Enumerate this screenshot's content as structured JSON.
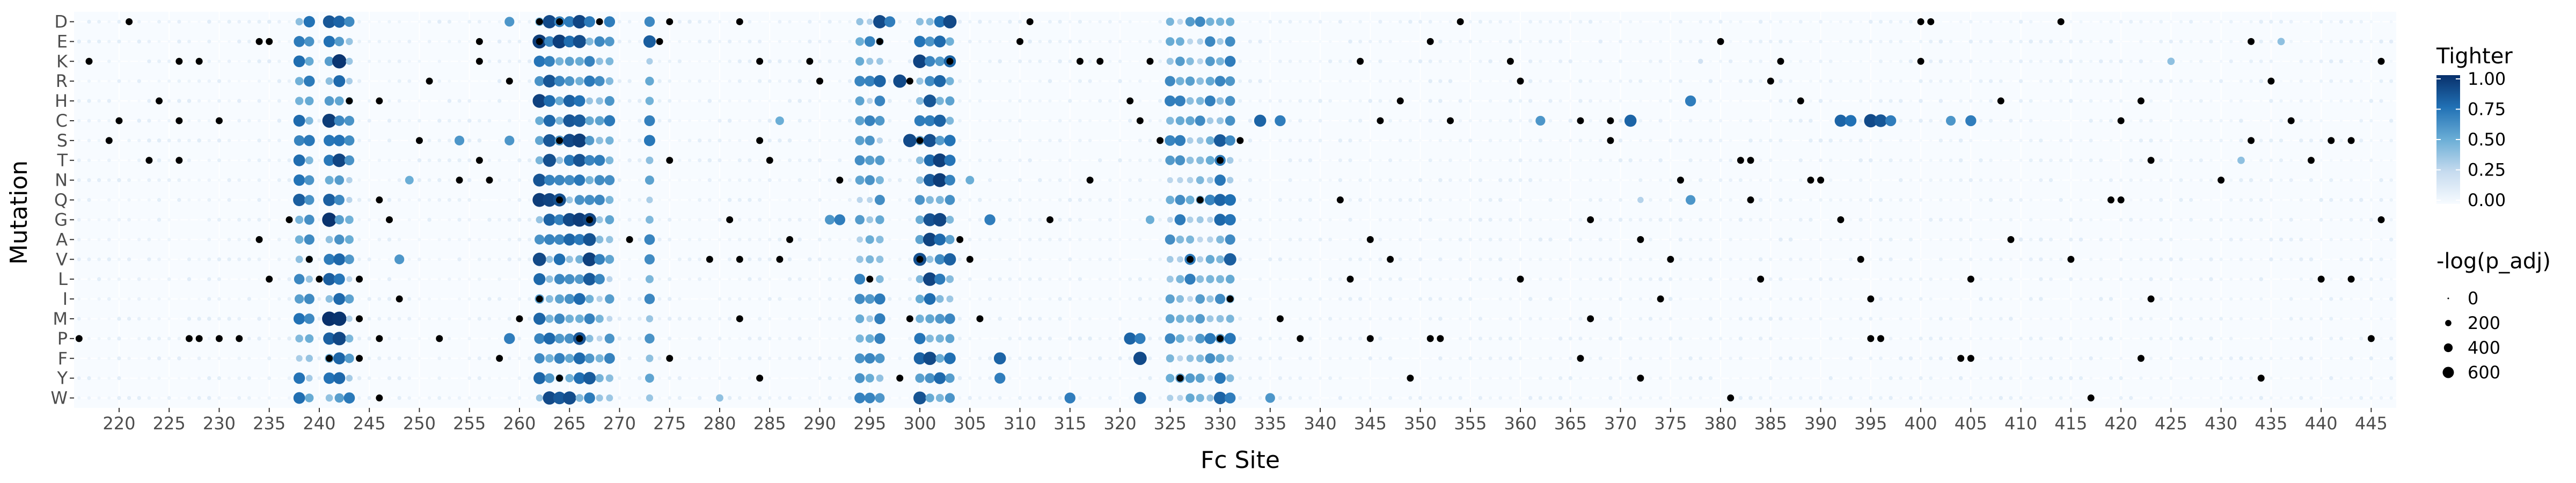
{
  "chart_data": {
    "type": "scatter",
    "subtype": "dot-matrix",
    "xlabel": "Fc Site",
    "ylabel": "Mutation",
    "x_range": [
      216,
      447
    ],
    "x_ticks": [
      220,
      225,
      230,
      235,
      240,
      245,
      250,
      255,
      260,
      265,
      270,
      275,
      280,
      285,
      290,
      295,
      300,
      305,
      310,
      315,
      320,
      325,
      330,
      335,
      340,
      345,
      350,
      355,
      360,
      365,
      370,
      375,
      380,
      385,
      390,
      395,
      400,
      405,
      410,
      415,
      420,
      425,
      430,
      435,
      440,
      445
    ],
    "mutations": [
      "D",
      "E",
      "K",
      "R",
      "H",
      "C",
      "S",
      "T",
      "N",
      "Q",
      "G",
      "A",
      "V",
      "L",
      "I",
      "M",
      "P",
      "F",
      "Y",
      "W"
    ],
    "color_legend": {
      "title": "Tighter",
      "ticks": [
        "1.00",
        "0.75",
        "0.50",
        "0.25",
        "0.00"
      ],
      "low_color": "#f7fbff",
      "high_color": "#08306b"
    },
    "size_legend": {
      "title": "-log(p_adj)",
      "entries": [
        {
          "label": "0",
          "value": 0
        },
        {
          "label": "200",
          "value": 200
        },
        {
          "label": "400",
          "value": 400
        },
        {
          "label": "600",
          "value": 600
        }
      ]
    },
    "significant_color": "#000000",
    "background_color": "#f7fbff",
    "hotspot_columns": [
      {
        "from": 238,
        "to": 239,
        "value": 0.7
      },
      {
        "from": 241,
        "to": 242,
        "value": 0.85
      },
      {
        "from": 243,
        "to": 243,
        "value": 0.6
      },
      {
        "from": 262,
        "to": 267,
        "value": 0.8
      },
      {
        "from": 268,
        "to": 269,
        "value": 0.6
      },
      {
        "from": 273,
        "to": 273,
        "value": 0.7
      },
      {
        "from": 294,
        "to": 296,
        "value": 0.6
      },
      {
        "from": 300,
        "to": 303,
        "value": 0.8
      },
      {
        "from": 325,
        "to": 329,
        "value": 0.6
      },
      {
        "from": 330,
        "to": 331,
        "value": 0.7
      }
    ],
    "points": [
      {
        "m": "C",
        "x": 392,
        "v": 0.8
      },
      {
        "m": "C",
        "x": 393,
        "v": 0.75
      },
      {
        "m": "C",
        "x": 395,
        "v": 0.9
      },
      {
        "m": "C",
        "x": 396,
        "v": 0.85
      },
      {
        "m": "C",
        "x": 397,
        "v": 0.7
      },
      {
        "m": "C",
        "x": 403,
        "v": 0.6
      },
      {
        "m": "C",
        "x": 405,
        "v": 0.7
      },
      {
        "m": "C",
        "x": 334,
        "v": 0.8
      },
      {
        "m": "C",
        "x": 336,
        "v": 0.7
      },
      {
        "m": "C",
        "x": 362,
        "v": 0.6
      },
      {
        "m": "C",
        "x": 371,
        "v": 0.8
      },
      {
        "m": "C",
        "x": 286,
        "v": 0.5
      },
      {
        "m": "H",
        "x": 377,
        "v": 0.7
      },
      {
        "m": "Q",
        "x": 377,
        "v": 0.6
      },
      {
        "m": "W",
        "x": 315,
        "v": 0.7
      },
      {
        "m": "W",
        "x": 335,
        "v": 0.6
      },
      {
        "m": "W",
        "x": 280,
        "v": 0.4
      },
      {
        "m": "Y",
        "x": 308,
        "v": 0.7
      },
      {
        "m": "F",
        "x": 308,
        "v": 0.8
      },
      {
        "m": "G",
        "x": 307,
        "v": 0.7
      },
      {
        "m": "N",
        "x": 305,
        "v": 0.5
      },
      {
        "m": "D",
        "x": 296,
        "v": 0.9
      },
      {
        "m": "D",
        "x": 297,
        "v": 0.7
      },
      {
        "m": "R",
        "x": 296,
        "v": 0.8
      },
      {
        "m": "R",
        "x": 298,
        "v": 0.9
      },
      {
        "m": "S",
        "x": 299,
        "v": 0.9
      },
      {
        "m": "D",
        "x": 259,
        "v": 0.6
      },
      {
        "m": "S",
        "x": 254,
        "v": 0.6
      },
      {
        "m": "N",
        "x": 249,
        "v": 0.5
      },
      {
        "m": "V",
        "x": 248,
        "v": 0.6
      },
      {
        "m": "G",
        "x": 291,
        "v": 0.6
      },
      {
        "m": "G",
        "x": 292,
        "v": 0.7
      },
      {
        "m": "F",
        "x": 296,
        "v": 0.6
      },
      {
        "m": "P",
        "x": 321,
        "v": 0.8
      },
      {
        "m": "F",
        "x": 322,
        "v": 0.9
      },
      {
        "m": "P",
        "x": 322,
        "v": 0.7
      },
      {
        "m": "W",
        "x": 330,
        "v": 0.8
      },
      {
        "m": "W",
        "x": 331,
        "v": 0.7
      },
      {
        "m": "K",
        "x": 378,
        "v": 0.2
      },
      {
        "m": "Q",
        "x": 372,
        "v": 0.3
      },
      {
        "m": "E",
        "x": 436,
        "v": 0.4
      },
      {
        "m": "K",
        "x": 425,
        "v": 0.4
      },
      {
        "m": "T",
        "x": 432,
        "v": 0.4
      },
      {
        "m": "W",
        "x": 322,
        "v": 0.8
      },
      {
        "m": "G",
        "x": 323,
        "v": 0.5
      },
      {
        "m": "P",
        "x": 259,
        "v": 0.7
      },
      {
        "m": "S",
        "x": 259,
        "v": 0.6
      }
    ],
    "significant_points": [
      {
        "m": "D",
        "x": 221
      },
      {
        "m": "D",
        "x": 262
      },
      {
        "m": "D",
        "x": 264
      },
      {
        "m": "D",
        "x": 268
      },
      {
        "m": "D",
        "x": 275
      },
      {
        "m": "D",
        "x": 282
      },
      {
        "m": "D",
        "x": 311
      },
      {
        "m": "D",
        "x": 354
      },
      {
        "m": "D",
        "x": 400
      },
      {
        "m": "D",
        "x": 401
      },
      {
        "m": "D",
        "x": 414
      },
      {
        "m": "E",
        "x": 234
      },
      {
        "m": "E",
        "x": 235
      },
      {
        "m": "E",
        "x": 256
      },
      {
        "m": "E",
        "x": 262
      },
      {
        "m": "E",
        "x": 274
      },
      {
        "m": "E",
        "x": 296
      },
      {
        "m": "E",
        "x": 310
      },
      {
        "m": "E",
        "x": 351
      },
      {
        "m": "E",
        "x": 380
      },
      {
        "m": "E",
        "x": 433
      },
      {
        "m": "K",
        "x": 217
      },
      {
        "m": "K",
        "x": 226
      },
      {
        "m": "K",
        "x": 228
      },
      {
        "m": "K",
        "x": 256
      },
      {
        "m": "K",
        "x": 284
      },
      {
        "m": "K",
        "x": 289
      },
      {
        "m": "K",
        "x": 303
      },
      {
        "m": "K",
        "x": 316
      },
      {
        "m": "K",
        "x": 318
      },
      {
        "m": "K",
        "x": 323
      },
      {
        "m": "K",
        "x": 344
      },
      {
        "m": "K",
        "x": 359
      },
      {
        "m": "K",
        "x": 386
      },
      {
        "m": "K",
        "x": 400
      },
      {
        "m": "K",
        "x": 446
      },
      {
        "m": "R",
        "x": 251
      },
      {
        "m": "R",
        "x": 259
      },
      {
        "m": "R",
        "x": 290
      },
      {
        "m": "R",
        "x": 299
      },
      {
        "m": "R",
        "x": 360
      },
      {
        "m": "R",
        "x": 385
      },
      {
        "m": "R",
        "x": 435
      },
      {
        "m": "H",
        "x": 224
      },
      {
        "m": "H",
        "x": 243
      },
      {
        "m": "H",
        "x": 246
      },
      {
        "m": "H",
        "x": 321
      },
      {
        "m": "H",
        "x": 348
      },
      {
        "m": "H",
        "x": 388
      },
      {
        "m": "H",
        "x": 408
      },
      {
        "m": "H",
        "x": 422
      },
      {
        "m": "C",
        "x": 220
      },
      {
        "m": "C",
        "x": 226
      },
      {
        "m": "C",
        "x": 230
      },
      {
        "m": "C",
        "x": 322
      },
      {
        "m": "C",
        "x": 346
      },
      {
        "m": "C",
        "x": 353
      },
      {
        "m": "C",
        "x": 366
      },
      {
        "m": "C",
        "x": 369
      },
      {
        "m": "C",
        "x": 420
      },
      {
        "m": "C",
        "x": 437
      },
      {
        "m": "S",
        "x": 219
      },
      {
        "m": "S",
        "x": 250
      },
      {
        "m": "S",
        "x": 264
      },
      {
        "m": "S",
        "x": 284
      },
      {
        "m": "S",
        "x": 300
      },
      {
        "m": "S",
        "x": 324
      },
      {
        "m": "S",
        "x": 332
      },
      {
        "m": "S",
        "x": 369
      },
      {
        "m": "S",
        "x": 433
      },
      {
        "m": "S",
        "x": 441
      },
      {
        "m": "S",
        "x": 443
      },
      {
        "m": "T",
        "x": 223
      },
      {
        "m": "T",
        "x": 226
      },
      {
        "m": "T",
        "x": 256
      },
      {
        "m": "T",
        "x": 275
      },
      {
        "m": "T",
        "x": 285
      },
      {
        "m": "T",
        "x": 330
      },
      {
        "m": "T",
        "x": 382
      },
      {
        "m": "T",
        "x": 383
      },
      {
        "m": "T",
        "x": 423
      },
      {
        "m": "T",
        "x": 439
      },
      {
        "m": "N",
        "x": 254
      },
      {
        "m": "N",
        "x": 257
      },
      {
        "m": "N",
        "x": 292
      },
      {
        "m": "N",
        "x": 317
      },
      {
        "m": "N",
        "x": 376
      },
      {
        "m": "N",
        "x": 389
      },
      {
        "m": "N",
        "x": 390
      },
      {
        "m": "N",
        "x": 430
      },
      {
        "m": "Q",
        "x": 246
      },
      {
        "m": "Q",
        "x": 264
      },
      {
        "m": "Q",
        "x": 328
      },
      {
        "m": "Q",
        "x": 342
      },
      {
        "m": "Q",
        "x": 383
      },
      {
        "m": "Q",
        "x": 419
      },
      {
        "m": "Q",
        "x": 420
      },
      {
        "m": "G",
        "x": 237
      },
      {
        "m": "G",
        "x": 247
      },
      {
        "m": "G",
        "x": 267
      },
      {
        "m": "G",
        "x": 281
      },
      {
        "m": "G",
        "x": 313
      },
      {
        "m": "G",
        "x": 367
      },
      {
        "m": "G",
        "x": 392
      },
      {
        "m": "G",
        "x": 446
      },
      {
        "m": "A",
        "x": 234
      },
      {
        "m": "A",
        "x": 271
      },
      {
        "m": "A",
        "x": 287
      },
      {
        "m": "A",
        "x": 304
      },
      {
        "m": "A",
        "x": 345
      },
      {
        "m": "A",
        "x": 372
      },
      {
        "m": "A",
        "x": 409
      },
      {
        "m": "V",
        "x": 239
      },
      {
        "m": "V",
        "x": 279
      },
      {
        "m": "V",
        "x": 282
      },
      {
        "m": "V",
        "x": 286
      },
      {
        "m": "V",
        "x": 300
      },
      {
        "m": "V",
        "x": 305
      },
      {
        "m": "V",
        "x": 327
      },
      {
        "m": "V",
        "x": 347
      },
      {
        "m": "V",
        "x": 375
      },
      {
        "m": "V",
        "x": 394
      },
      {
        "m": "V",
        "x": 415
      },
      {
        "m": "L",
        "x": 235
      },
      {
        "m": "L",
        "x": 240
      },
      {
        "m": "L",
        "x": 244
      },
      {
        "m": "L",
        "x": 295
      },
      {
        "m": "L",
        "x": 343
      },
      {
        "m": "L",
        "x": 360
      },
      {
        "m": "L",
        "x": 384
      },
      {
        "m": "L",
        "x": 405
      },
      {
        "m": "L",
        "x": 440
      },
      {
        "m": "L",
        "x": 443
      },
      {
        "m": "I",
        "x": 248
      },
      {
        "m": "I",
        "x": 262
      },
      {
        "m": "I",
        "x": 331
      },
      {
        "m": "I",
        "x": 374
      },
      {
        "m": "I",
        "x": 395
      },
      {
        "m": "I",
        "x": 423
      },
      {
        "m": "M",
        "x": 244
      },
      {
        "m": "M",
        "x": 260
      },
      {
        "m": "M",
        "x": 282
      },
      {
        "m": "M",
        "x": 299
      },
      {
        "m": "M",
        "x": 306
      },
      {
        "m": "M",
        "x": 336
      },
      {
        "m": "M",
        "x": 367
      },
      {
        "m": "P",
        "x": 216
      },
      {
        "m": "P",
        "x": 227
      },
      {
        "m": "P",
        "x": 228
      },
      {
        "m": "P",
        "x": 230
      },
      {
        "m": "P",
        "x": 232
      },
      {
        "m": "P",
        "x": 246
      },
      {
        "m": "P",
        "x": 252
      },
      {
        "m": "P",
        "x": 266
      },
      {
        "m": "P",
        "x": 330
      },
      {
        "m": "P",
        "x": 338
      },
      {
        "m": "P",
        "x": 345
      },
      {
        "m": "P",
        "x": 351
      },
      {
        "m": "P",
        "x": 352
      },
      {
        "m": "P",
        "x": 395
      },
      {
        "m": "P",
        "x": 396
      },
      {
        "m": "P",
        "x": 445
      },
      {
        "m": "F",
        "x": 241
      },
      {
        "m": "F",
        "x": 244
      },
      {
        "m": "F",
        "x": 258
      },
      {
        "m": "F",
        "x": 275
      },
      {
        "m": "F",
        "x": 366
      },
      {
        "m": "F",
        "x": 404
      },
      {
        "m": "F",
        "x": 405
      },
      {
        "m": "F",
        "x": 422
      },
      {
        "m": "Y",
        "x": 264
      },
      {
        "m": "Y",
        "x": 284
      },
      {
        "m": "Y",
        "x": 298
      },
      {
        "m": "Y",
        "x": 326
      },
      {
        "m": "Y",
        "x": 349
      },
      {
        "m": "Y",
        "x": 372
      },
      {
        "m": "Y",
        "x": 434
      },
      {
        "m": "W",
        "x": 246
      },
      {
        "m": "W",
        "x": 381
      },
      {
        "m": "W",
        "x": 417
      }
    ]
  }
}
